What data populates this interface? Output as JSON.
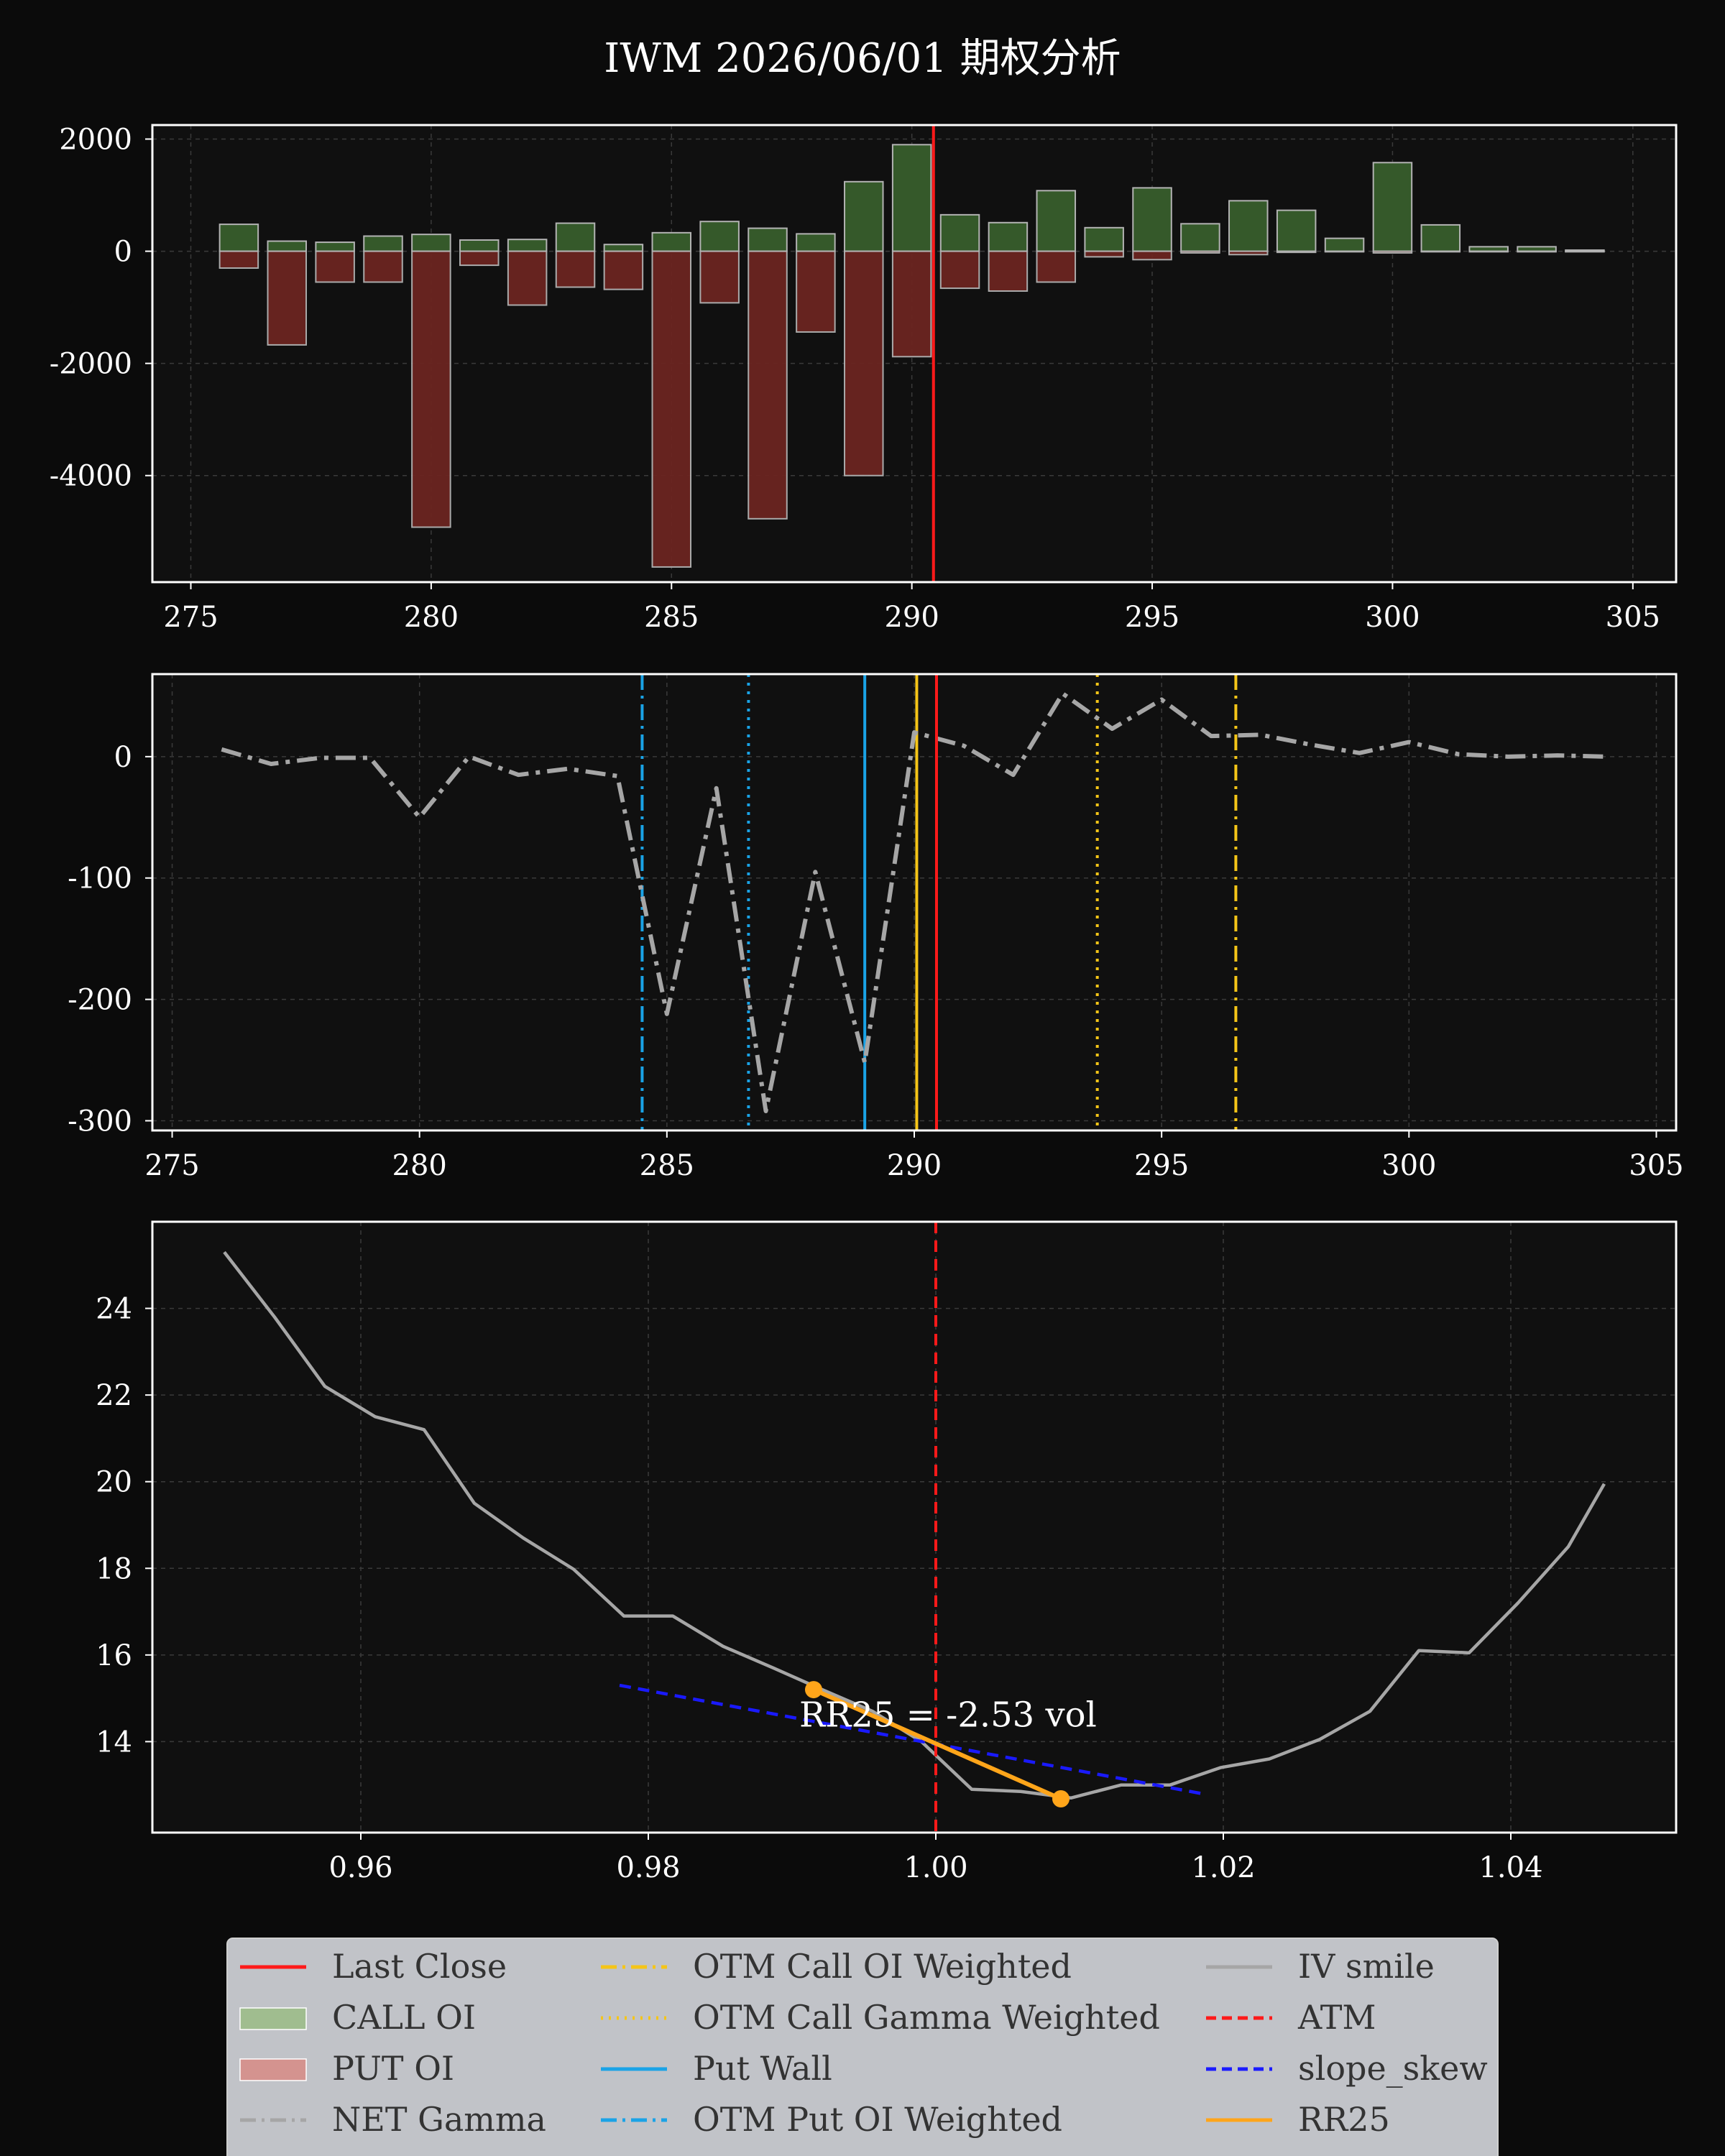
{
  "title": "IWM 2026/06/01 期权分析",
  "colors": {
    "background": "#0b0b0b",
    "axes_bg": "#101010",
    "grid": "#3a3a3a",
    "text": "#ffffff",
    "call_fill": "#35592a",
    "put_fill": "#6b2520",
    "bar_edge": "#b3b3b3",
    "net_gamma": "#a6a6a6",
    "last_close": "#ff1a1a",
    "otm_call": "#f5c518",
    "put_wall": "#1aa3e6",
    "iv_smile": "#a6a6a6",
    "atm": "#ff1a1a",
    "slope_skew": "#1a1aff",
    "rr25": "#ffa51a",
    "legend_bg": "#c1c3c8",
    "legend_text": "#333333"
  },
  "chart_data": [
    {
      "type": "bar",
      "name": "oi-chart",
      "xlim": [
        274.2,
        305.9
      ],
      "ylim": [
        -5900,
        2250
      ],
      "xticks": [
        275,
        280,
        285,
        290,
        295,
        300,
        305
      ],
      "xtick_labels": [
        "275",
        "280",
        "285",
        "290",
        "295",
        "300",
        "305"
      ],
      "yticks": [
        2000,
        0,
        -2000,
        -4000
      ],
      "ytick_labels": [
        "2000",
        "0",
        "-2000",
        "-4000"
      ],
      "x": [
        276,
        277,
        278,
        279,
        280,
        281,
        282,
        283,
        284,
        285,
        286,
        287,
        288,
        289,
        290,
        291,
        292,
        293,
        294,
        295,
        296,
        297,
        298,
        299,
        300,
        301,
        302,
        303,
        304
      ],
      "series": [
        {
          "name": "CALL OI",
          "values": [
            480,
            180,
            160,
            270,
            300,
            200,
            210,
            500,
            120,
            330,
            530,
            410,
            310,
            1240,
            1900,
            650,
            510,
            1080,
            420,
            1130,
            490,
            900,
            730,
            230,
            1580,
            470,
            80,
            80,
            20
          ]
        },
        {
          "name": "PUT OI",
          "values": [
            -300,
            -1670,
            -550,
            -550,
            -4920,
            -250,
            -960,
            -640,
            -680,
            -5630,
            -920,
            -4770,
            -1440,
            -4000,
            -1880,
            -660,
            -710,
            -550,
            -100,
            -150,
            -30,
            -60,
            -20,
            -10,
            -30,
            -10,
            -10,
            -10,
            -10
          ]
        }
      ],
      "last_close": 290.45
    },
    {
      "type": "line",
      "name": "gamma-chart",
      "xlim": [
        274.6,
        305.4
      ],
      "ylim": [
        -308,
        68
      ],
      "xticks": [
        275,
        280,
        285,
        290,
        295,
        300,
        305
      ],
      "xtick_labels": [
        "275",
        "280",
        "285",
        "290",
        "295",
        "300",
        "305"
      ],
      "yticks": [
        0,
        -100,
        -200,
        -300
      ],
      "ytick_labels": [
        "0",
        "-100",
        "-200",
        "-300"
      ],
      "x": [
        276,
        277,
        278,
        279,
        280,
        281,
        282,
        283,
        284,
        285,
        286,
        287,
        288,
        289,
        290,
        291,
        292,
        293,
        294,
        295,
        296,
        297,
        298,
        299,
        300,
        301,
        302,
        303,
        304
      ],
      "series": [
        {
          "name": "NET Gamma",
          "values": [
            6,
            -6,
            -1,
            -1,
            -50,
            0,
            -15,
            -10,
            -16,
            -212,
            -26,
            -292,
            -95,
            -252,
            20,
            9,
            -15,
            52,
            23,
            47,
            17,
            18,
            10,
            3,
            12,
            2,
            0,
            1,
            0
          ]
        }
      ],
      "last_close": 290.45,
      "otm_call_oi_weighted": 296.5,
      "otm_call_gamma_weighted": 293.7,
      "put_wall": 289,
      "otm_put_oi_weighted": 284.5,
      "extra_line": 286.65,
      "call_wall": 290.05
    },
    {
      "type": "line",
      "name": "iv-chart",
      "xlim": [
        0.9455,
        1.0515
      ],
      "ylim": [
        11.9,
        26
      ],
      "xticks": [
        0.96,
        0.98,
        1.0,
        1.02,
        1.04
      ],
      "xtick_labels": [
        "0.96",
        "0.98",
        "1.00",
        "1.02",
        "1.04"
      ],
      "yticks": [
        14,
        16,
        18,
        20,
        22,
        24
      ],
      "ytick_labels": [
        "14",
        "16",
        "18",
        "20",
        "22",
        "24"
      ],
      "series": [
        {
          "name": "IV smile",
          "x": [
            0.9505,
            0.954,
            0.9575,
            0.961,
            0.9644,
            0.9679,
            0.9713,
            0.9748,
            0.9783,
            0.9817,
            0.9852,
            0.9887,
            0.9921,
            0.9956,
            0.999,
            1.0025,
            1.0059,
            1.0094,
            1.0129,
            1.0163,
            1.0198,
            1.0232,
            1.0267,
            1.0302,
            1.0336,
            1.0371,
            1.0405,
            1.044,
            1.0465
          ],
          "y": [
            25.3,
            23.8,
            22.2,
            21.5,
            21.2,
            19.5,
            18.7,
            17.98,
            16.9,
            16.9,
            16.2,
            15.7,
            15.2,
            14.7,
            14.0,
            12.9,
            12.85,
            12.7,
            13.0,
            13.0,
            13.4,
            13.6,
            14.05,
            14.7,
            16.1,
            16.05,
            17.2,
            18.5,
            19.95
          ]
        },
        {
          "name": "slope_skew",
          "x": [
            0.978,
            1.0185
          ],
          "y": [
            15.3,
            12.8
          ]
        },
        {
          "name": "RR25",
          "x": [
            0.9915,
            1.0087
          ],
          "y": [
            15.2,
            12.68
          ]
        }
      ],
      "atm": 1.0,
      "annotation": "RR25 = -2.53 vol"
    }
  ],
  "legend": {
    "columns": [
      [
        {
          "label": "Last Close",
          "style": "line-solid",
          "color": "#ff1a1a"
        },
        {
          "label": "CALL OI",
          "style": "patch",
          "color": "#a0bd8f"
        },
        {
          "label": "PUT OI",
          "style": "patch",
          "color": "#d4938f"
        },
        {
          "label": "NET Gamma",
          "style": "line-dashdot",
          "color": "#a6a6a6"
        }
      ],
      [
        {
          "label": "OTM Call OI Weighted",
          "style": "line-dashdot",
          "color": "#f5c518"
        },
        {
          "label": "OTM Call Gamma Weighted",
          "style": "line-dotted",
          "color": "#f5c518"
        },
        {
          "label": "Put Wall",
          "style": "line-solid",
          "color": "#1aa3e6"
        },
        {
          "label": "OTM Put OI Weighted",
          "style": "line-dashdot",
          "color": "#1aa3e6"
        }
      ],
      [
        {
          "label": "IV smile",
          "style": "line-solid",
          "color": "#a6a6a6"
        },
        {
          "label": "ATM",
          "style": "line-dashed",
          "color": "#ff1a1a"
        },
        {
          "label": "slope_skew",
          "style": "line-dashed",
          "color": "#1a1aff"
        },
        {
          "label": "RR25",
          "style": "line-solid",
          "color": "#ffa51a"
        }
      ]
    ]
  }
}
